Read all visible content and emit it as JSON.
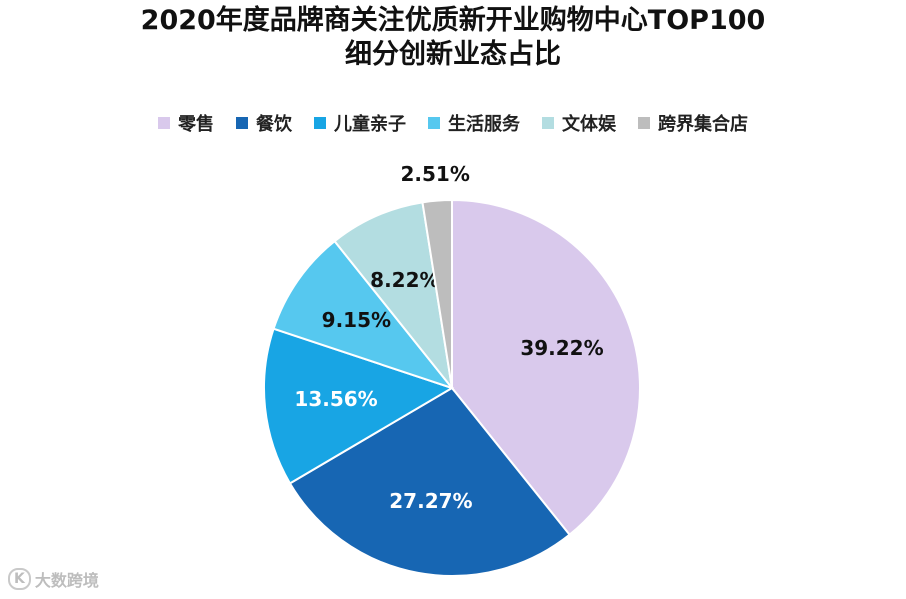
{
  "title_line1": "2020年度品牌商关注优质新开业购物中心TOP100",
  "title_line2": "细分创新业态占比",
  "watermark": {
    "logo": "K",
    "text": "大数跨境"
  },
  "chart_data": {
    "type": "pie",
    "title": "2020年度品牌商关注优质新开业购物中心TOP100 细分创新业态占比",
    "categories": [
      "零售",
      "餐饮",
      "儿童亲子",
      "生活服务",
      "文体娱",
      "跨界集合店"
    ],
    "values": [
      39.22,
      27.27,
      13.56,
      9.15,
      8.22,
      2.51
    ],
    "labels": [
      "39.22%",
      "27.27%",
      "13.56%",
      "9.15%",
      "8.22%",
      "2.51%"
    ],
    "colors": [
      "#d9c9ec",
      "#1766b3",
      "#18a5e4",
      "#56c8ef",
      "#b3dde1",
      "#bdbdbd"
    ],
    "label_colors": [
      "#111111",
      "#ffffff",
      "#ffffff",
      "#111111",
      "#111111",
      "#111111"
    ],
    "legend_position": "top",
    "start_angle_deg": 0,
    "direction": "clockwise"
  }
}
